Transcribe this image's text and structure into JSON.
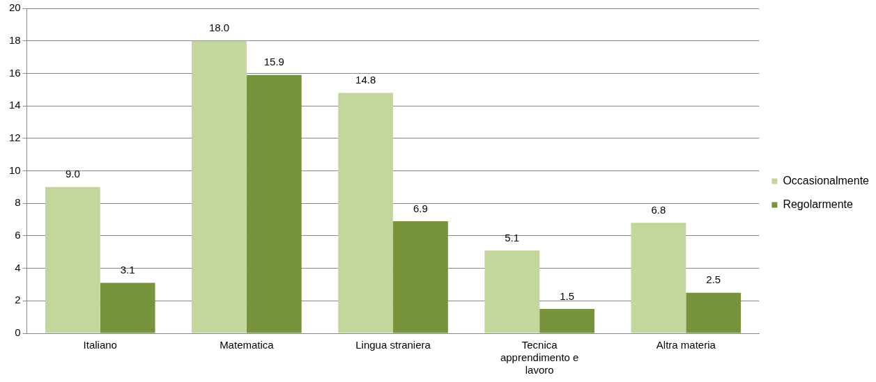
{
  "chart_data": {
    "type": "bar",
    "categories": [
      "Italiano",
      "Matematica",
      "Lingua straniera",
      "Tecnica apprendimento e lavoro",
      "Altra materia"
    ],
    "series": [
      {
        "name": "Occasionalmente",
        "color": "#c3d69b",
        "values": [
          9.0,
          18.0,
          14.8,
          5.1,
          6.8
        ],
        "value_labels": [
          "9.0",
          "18.0",
          "14.8",
          "5.1",
          "6.8"
        ]
      },
      {
        "name": "Regolarmente",
        "color": "#77933c",
        "values": [
          3.1,
          15.9,
          6.9,
          1.5,
          2.5
        ],
        "value_labels": [
          "3.1",
          "15.9",
          "6.9",
          "1.5",
          "2.5"
        ]
      }
    ],
    "ylim": [
      0,
      20
    ],
    "yticks": [
      0,
      2,
      4,
      6,
      8,
      10,
      12,
      14,
      16,
      18,
      20
    ],
    "grid": "y",
    "legend": "right"
  }
}
